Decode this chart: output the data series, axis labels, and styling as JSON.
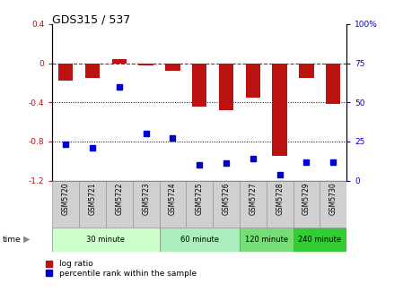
{
  "title": "GDS315 / 537",
  "samples": [
    "GSM5720",
    "GSM5721",
    "GSM5722",
    "GSM5723",
    "GSM5724",
    "GSM5725",
    "GSM5726",
    "GSM5727",
    "GSM5728",
    "GSM5729",
    "GSM5730"
  ],
  "log_ratio": [
    -0.18,
    -0.15,
    0.04,
    -0.02,
    -0.08,
    -0.44,
    -0.48,
    -0.35,
    -0.95,
    -0.15,
    -0.42
  ],
  "percentile_rank": [
    23,
    21,
    60,
    30,
    27,
    10,
    11,
    14,
    4,
    12,
    12
  ],
  "bar_color": "#bb1111",
  "point_color": "#0000cc",
  "ylim_left": [
    -1.2,
    0.4
  ],
  "ylim_right": [
    0,
    100
  ],
  "yticks_left": [
    -1.2,
    -0.8,
    -0.4,
    0.0,
    0.4
  ],
  "yticks_right": [
    0,
    25,
    50,
    75,
    100
  ],
  "dotted_lines": [
    -0.4,
    -0.8
  ],
  "background_color": "#ffffff",
  "bar_width": 0.55,
  "group_colors": [
    "#ccffcc",
    "#aaeebb",
    "#77dd77",
    "#33cc33"
  ],
  "group_ranges": [
    [
      0,
      3
    ],
    [
      4,
      6
    ],
    [
      7,
      8
    ],
    [
      9,
      10
    ]
  ],
  "group_labels": [
    "30 minute",
    "60 minute",
    "120 minute",
    "240 minute"
  ]
}
